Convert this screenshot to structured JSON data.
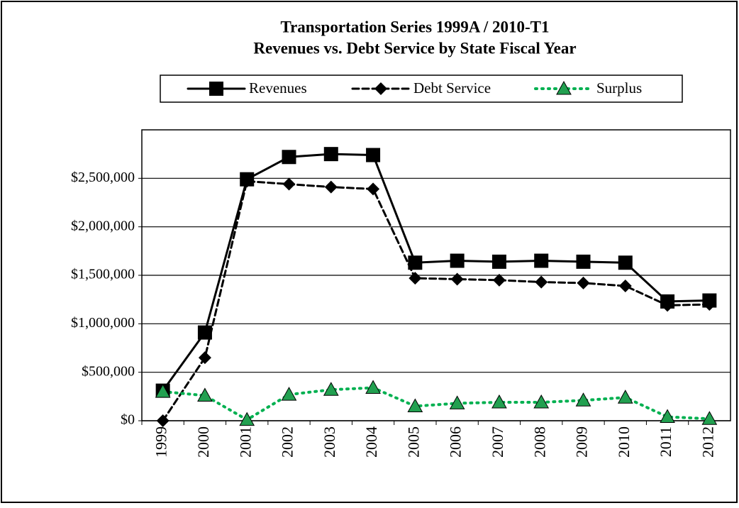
{
  "chart_data": {
    "type": "line",
    "title": [
      "Transportation  Series 1999A / 2010-T1",
      "Revenues vs. Debt Service by State Fiscal Year"
    ],
    "categories": [
      "1999",
      "2000",
      "2001",
      "2002",
      "2003",
      "2004",
      "2005",
      "2006",
      "2007",
      "2008",
      "2009",
      "2010",
      "2011",
      "2012"
    ],
    "series": [
      {
        "name": "Revenues",
        "color": "#000000",
        "marker": "square",
        "dash": "solid",
        "values": [
          310000,
          910000,
          2490000,
          2720000,
          2750000,
          2740000,
          1630000,
          1650000,
          1640000,
          1650000,
          1640000,
          1630000,
          1230000,
          1240000
        ]
      },
      {
        "name": "Debt Service",
        "color": "#000000",
        "marker": "diamond",
        "dash": "dashed",
        "values": [
          0,
          650000,
          2470000,
          2440000,
          2410000,
          2390000,
          1470000,
          1460000,
          1450000,
          1430000,
          1420000,
          1390000,
          1190000,
          1200000
        ]
      },
      {
        "name": "Surplus",
        "color": "#00b050",
        "marker": "triangle",
        "dash": "dotted",
        "values": [
          300000,
          260000,
          10000,
          270000,
          320000,
          340000,
          150000,
          180000,
          190000,
          190000,
          210000,
          240000,
          40000,
          20000
        ]
      }
    ],
    "ylim": [
      0,
      3000000
    ],
    "yticks": [
      {
        "value": 0,
        "label": "$0"
      },
      {
        "value": 500000,
        "label": "$500,000"
      },
      {
        "value": 1000000,
        "label": "$1,000,000"
      },
      {
        "value": 1500000,
        "label": "$1,500,000"
      },
      {
        "value": 2000000,
        "label": "$2,000,000"
      },
      {
        "value": 2500000,
        "label": "$2,500,000"
      }
    ],
    "grid": true,
    "legend": "top"
  }
}
